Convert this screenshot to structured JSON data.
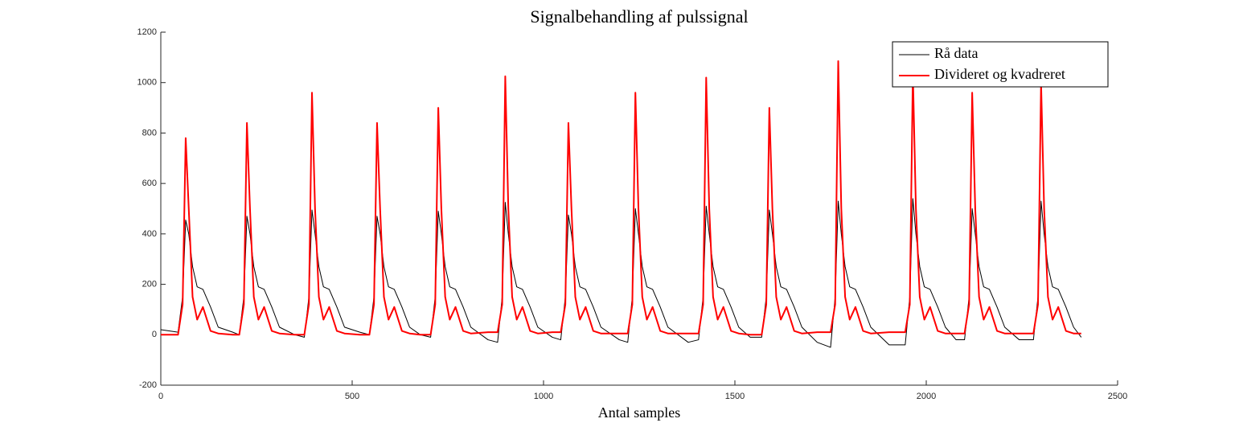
{
  "chart_data": {
    "type": "line",
    "title": "Signalbehandling af pulssignal",
    "xlabel": "Antal samples",
    "x": [
      0,
      45,
      57,
      65,
      73,
      83,
      95,
      110,
      130,
      150,
      188,
      205,
      217,
      225,
      233,
      243,
      255,
      270,
      290,
      310,
      350,
      375,
      387,
      395,
      403,
      413,
      425,
      440,
      460,
      480,
      520,
      545,
      557,
      565,
      573,
      583,
      595,
      610,
      630,
      650,
      678,
      705,
      717,
      725,
      733,
      743,
      755,
      770,
      790,
      810,
      855,
      880,
      892,
      900,
      908,
      918,
      930,
      945,
      965,
      985,
      1023,
      1045,
      1057,
      1065,
      1073,
      1083,
      1095,
      1110,
      1130,
      1150,
      1198,
      1220,
      1232,
      1240,
      1248,
      1258,
      1270,
      1285,
      1305,
      1325,
      1378,
      1405,
      1417,
      1425,
      1433,
      1443,
      1455,
      1470,
      1490,
      1510,
      1540,
      1570,
      1582,
      1590,
      1598,
      1608,
      1620,
      1635,
      1655,
      1675,
      1715,
      1750,
      1762,
      1770,
      1778,
      1788,
      1800,
      1815,
      1835,
      1855,
      1903,
      1945,
      1957,
      1965,
      1973,
      1983,
      1995,
      2010,
      2030,
      2050,
      2078,
      2100,
      2112,
      2120,
      2128,
      2138,
      2150,
      2165,
      2185,
      2205,
      2243,
      2280,
      2292,
      2300,
      2308,
      2318,
      2330,
      2345,
      2365,
      2385,
      2405
    ],
    "series": [
      {
        "name": "Rå data",
        "color": "#000000",
        "values": [
          20,
          10,
          150,
          455,
          400,
          270,
          190,
          180,
          110,
          30,
          10,
          0,
          150,
          470,
          400,
          270,
          190,
          180,
          110,
          30,
          0,
          -10,
          150,
          495,
          400,
          270,
          190,
          180,
          110,
          30,
          10,
          0,
          150,
          470,
          400,
          270,
          190,
          180,
          110,
          30,
          0,
          -10,
          150,
          490,
          400,
          270,
          190,
          180,
          110,
          30,
          -20,
          -30,
          150,
          525,
          400,
          270,
          190,
          180,
          110,
          30,
          -10,
          -20,
          150,
          475,
          400,
          270,
          190,
          180,
          110,
          30,
          -20,
          -30,
          150,
          500,
          400,
          270,
          190,
          180,
          110,
          30,
          -30,
          -20,
          150,
          510,
          400,
          270,
          190,
          180,
          110,
          30,
          -10,
          -10,
          150,
          495,
          400,
          270,
          190,
          180,
          110,
          30,
          -30,
          -50,
          150,
          530,
          400,
          270,
          190,
          180,
          110,
          30,
          -40,
          -40,
          150,
          540,
          400,
          270,
          190,
          180,
          110,
          30,
          -20,
          -20,
          150,
          500,
          400,
          270,
          190,
          180,
          110,
          30,
          -20,
          -20,
          150,
          530,
          400,
          270,
          190,
          180,
          110,
          30,
          -10
        ]
      },
      {
        "name": "Divideret og kvadreret",
        "color": "#ff0000",
        "values": [
          0,
          0,
          120,
          780,
          500,
          150,
          60,
          110,
          15,
          5,
          0,
          0,
          120,
          840,
          500,
          150,
          60,
          110,
          15,
          5,
          0,
          0,
          120,
          960,
          500,
          150,
          60,
          110,
          15,
          5,
          0,
          0,
          120,
          840,
          500,
          150,
          60,
          110,
          15,
          5,
          0,
          0,
          120,
          900,
          500,
          150,
          60,
          110,
          15,
          5,
          10,
          10,
          120,
          1025,
          500,
          150,
          60,
          110,
          15,
          5,
          10,
          10,
          120,
          840,
          500,
          150,
          60,
          110,
          15,
          5,
          5,
          5,
          120,
          960,
          500,
          150,
          60,
          110,
          15,
          5,
          5,
          5,
          120,
          1020,
          500,
          150,
          60,
          110,
          15,
          5,
          0,
          0,
          120,
          900,
          500,
          150,
          60,
          110,
          15,
          5,
          10,
          10,
          120,
          1085,
          500,
          150,
          60,
          110,
          15,
          5,
          10,
          10,
          120,
          1040,
          500,
          150,
          60,
          110,
          15,
          5,
          5,
          5,
          120,
          960,
          500,
          150,
          60,
          110,
          15,
          5,
          5,
          5,
          120,
          1000,
          500,
          150,
          60,
          110,
          15,
          5,
          5
        ]
      }
    ],
    "xlim": [
      0,
      2500
    ],
    "xticks": [
      0,
      500,
      1000,
      1500,
      2000,
      2500
    ],
    "ylim": [
      -200,
      1200
    ],
    "yticks": [
      -200,
      0,
      200,
      400,
      600,
      800,
      1000,
      1200
    ],
    "legend": "upper right"
  }
}
